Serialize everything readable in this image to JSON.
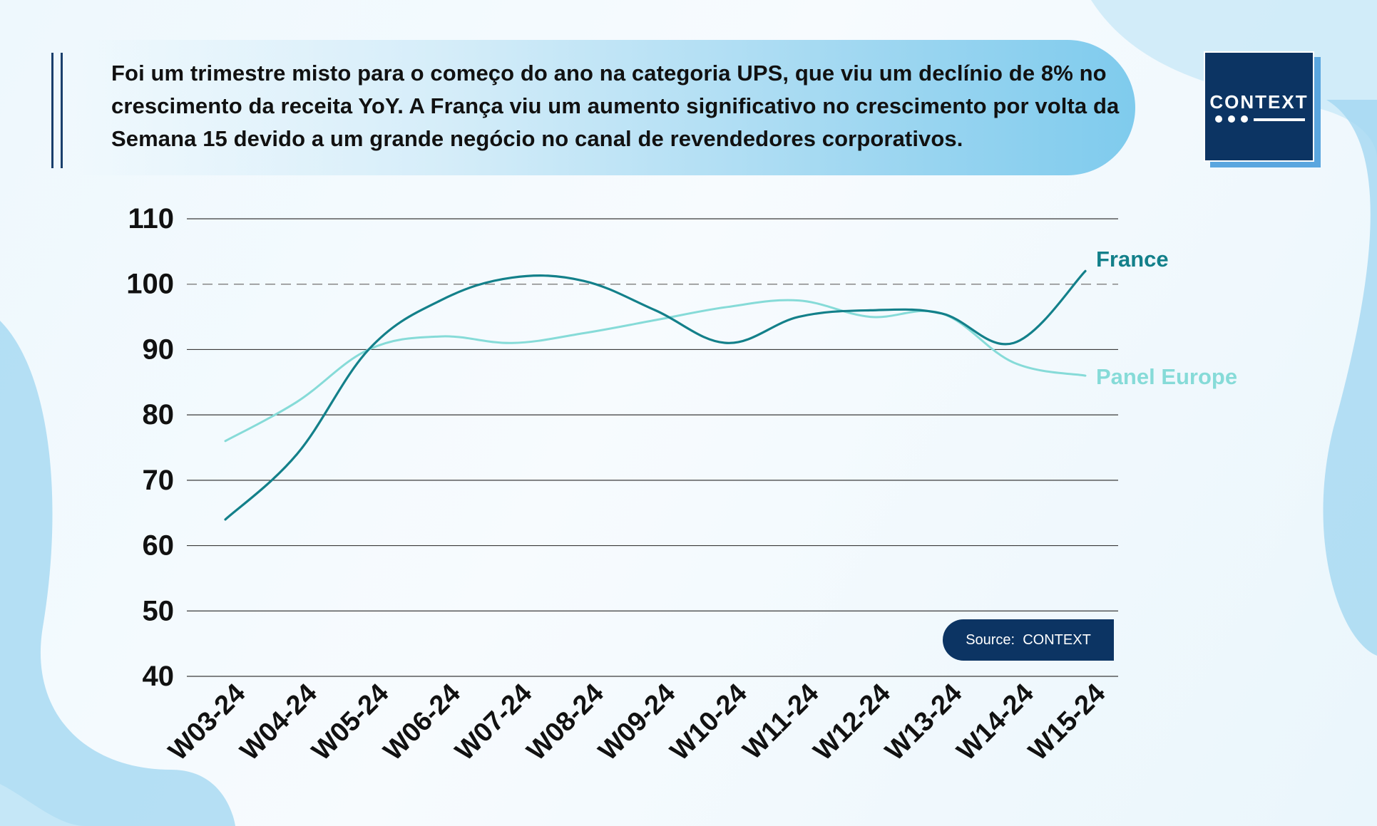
{
  "headline": "Foi um trimestre misto para o começo do ano na categoria UPS, que viu um declínio de 8% no crescimento da receita YoY. A França viu um aumento significativo no crescimento por volta da Semana 15 devido a um grande negócio no canal de revendedores corporativos.",
  "logo": {
    "text": "CONTEXT"
  },
  "source": "Source:  CONTEXT",
  "colors": {
    "france": "#13808a",
    "panel_europe": "#86dbd8",
    "navy": "#0c3463"
  },
  "chart_data": {
    "type": "line",
    "title": "",
    "xlabel": "",
    "ylabel": "",
    "categories": [
      "W03-24",
      "W04-24",
      "W05-24",
      "W06-24",
      "W07-24",
      "W08-24",
      "W09-24",
      "W10-24",
      "W11-24",
      "W12-24",
      "W13-24",
      "W14-24",
      "W15-24"
    ],
    "series": [
      {
        "name": "France",
        "values": [
          64,
          74,
          90,
          97.5,
          101,
          100.5,
          96,
          91,
          95,
          96,
          95.5,
          91,
          102
        ]
      },
      {
        "name": "Panel Europe",
        "values": [
          76,
          82,
          90,
          92,
          91,
          92.5,
          94.5,
          96.5,
          97.5,
          95,
          95.5,
          88,
          86
        ]
      }
    ],
    "ylim": [
      40,
      110
    ],
    "yticks": [
      "40",
      "50",
      "60",
      "70",
      "80",
      "90",
      "100",
      "110"
    ],
    "reference_line": 100,
    "grid": true,
    "legend": "end-of-line labels"
  }
}
